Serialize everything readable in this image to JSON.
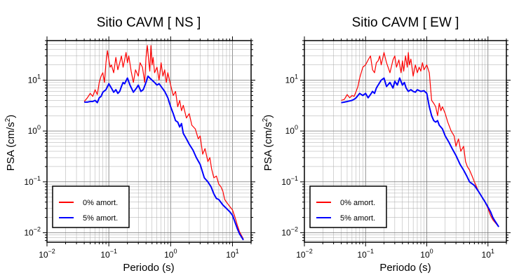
{
  "chart_data": [
    {
      "type": "line",
      "title": "Sitio CAVM [ NS ]",
      "xlabel": "Periodo (s)",
      "ylabel_main": "PSA (cm/s",
      "ylabel_sup": "2",
      "ylabel_tail": ")",
      "x_scale": "log",
      "y_scale": "log",
      "xlim": [
        0.01,
        20
      ],
      "ylim": [
        0.0065,
        60
      ],
      "x_ticks": [
        {
          "base": "10",
          "exp": "−2",
          "value": 0.01
        },
        {
          "base": "10",
          "exp": "−1",
          "value": 0.1
        },
        {
          "base": "10",
          "exp": "0",
          "value": 1
        },
        {
          "base": "10",
          "exp": "1",
          "value": 10
        }
      ],
      "y_ticks": [
        {
          "base": "10",
          "exp": "−2",
          "value": 0.01
        },
        {
          "base": "10",
          "exp": "−1",
          "value": 0.1
        },
        {
          "base": "10",
          "exp": "0",
          "value": 1
        },
        {
          "base": "10",
          "exp": "1",
          "value": 10
        }
      ],
      "grid": true,
      "legend": {
        "placement": "bottom-left",
        "entries": [
          "0% amort.",
          "5% amort."
        ]
      },
      "series": [
        {
          "name": "0% amort.",
          "color": "#ff0000",
          "x": [
            0.04,
            0.045,
            0.05,
            0.055,
            0.06,
            0.065,
            0.07,
            0.075,
            0.08,
            0.085,
            0.09,
            0.095,
            0.1,
            0.105,
            0.11,
            0.12,
            0.13,
            0.14,
            0.15,
            0.16,
            0.17,
            0.18,
            0.19,
            0.2,
            0.21,
            0.23,
            0.25,
            0.27,
            0.3,
            0.32,
            0.35,
            0.38,
            0.4,
            0.42,
            0.44,
            0.46,
            0.48,
            0.5,
            0.52,
            0.55,
            0.6,
            0.65,
            0.7,
            0.75,
            0.8,
            0.85,
            0.9,
            1.0,
            1.1,
            1.2,
            1.3,
            1.4,
            1.5,
            1.6,
            1.8,
            2.0,
            2.2,
            2.5,
            2.8,
            3.0,
            3.3,
            3.6,
            4.0,
            4.3,
            4.6,
            5.0,
            5.5,
            6.0,
            6.5,
            7.0,
            7.5,
            8.0,
            9.0,
            10,
            11,
            12,
            13,
            15
          ],
          "y": [
            3.8,
            4.5,
            5.5,
            4.8,
            6.5,
            5.2,
            9.0,
            12,
            14,
            9.0,
            22,
            38,
            25,
            18,
            20,
            14,
            28,
            16,
            22,
            30,
            18,
            25,
            35,
            22,
            30,
            15,
            9.0,
            16,
            12,
            22,
            18,
            9.0,
            28,
            48,
            25,
            15,
            48,
            20,
            28,
            14,
            18,
            10,
            22,
            12,
            16,
            9.0,
            14,
            8.0,
            5.0,
            6.0,
            3.0,
            4.0,
            2.5,
            3.2,
            1.8,
            2.2,
            1.3,
            1.1,
            0.7,
            0.8,
            0.35,
            0.45,
            0.25,
            0.3,
            0.18,
            0.12,
            0.13,
            0.09,
            0.08,
            0.065,
            0.045,
            0.04,
            0.033,
            0.028,
            0.02,
            0.014,
            0.0105,
            0.0075
          ]
        },
        {
          "name": "5% amort.",
          "color": "#0000ff",
          "x": [
            0.04,
            0.045,
            0.05,
            0.055,
            0.06,
            0.065,
            0.07,
            0.075,
            0.08,
            0.09,
            0.1,
            0.11,
            0.12,
            0.13,
            0.14,
            0.15,
            0.16,
            0.17,
            0.18,
            0.2,
            0.22,
            0.25,
            0.28,
            0.3,
            0.33,
            0.36,
            0.4,
            0.43,
            0.46,
            0.5,
            0.55,
            0.6,
            0.65,
            0.7,
            0.8,
            0.9,
            1.0,
            1.1,
            1.2,
            1.3,
            1.4,
            1.5,
            1.6,
            1.8,
            2.0,
            2.3,
            2.6,
            3.0,
            3.5,
            4.0,
            4.5,
            5.0,
            5.5,
            6.0,
            7.0,
            8.0,
            9.0,
            10,
            11,
            12,
            13,
            15
          ],
          "y": [
            3.7,
            3.7,
            3.8,
            3.8,
            4.0,
            3.6,
            4.5,
            4.8,
            5.8,
            6.5,
            8.5,
            7.0,
            5.8,
            6.5,
            5.5,
            6.0,
            7.5,
            9.0,
            8.5,
            11,
            8.0,
            5.8,
            7.0,
            8.0,
            6.0,
            6.5,
            9.0,
            12,
            11,
            10,
            9.0,
            8.0,
            8.5,
            7.5,
            6.0,
            4.5,
            3.0,
            2.2,
            1.6,
            1.5,
            1.2,
            1.4,
            0.9,
            0.7,
            0.55,
            0.42,
            0.3,
            0.22,
            0.12,
            0.1,
            0.08,
            0.058,
            0.047,
            0.045,
            0.035,
            0.03,
            0.026,
            0.022,
            0.016,
            0.012,
            0.0095,
            0.0072
          ]
        }
      ]
    },
    {
      "type": "line",
      "title": "Sitio CAVM [ EW ]",
      "xlabel": "Periodo (s)",
      "ylabel_main": "PSA (cm/s",
      "ylabel_sup": "2",
      "ylabel_tail": ")",
      "x_scale": "log",
      "y_scale": "log",
      "xlim": [
        0.01,
        20
      ],
      "ylim": [
        0.0065,
        60
      ],
      "x_ticks": [
        {
          "base": "10",
          "exp": "−2",
          "value": 0.01
        },
        {
          "base": "10",
          "exp": "−1",
          "value": 0.1
        },
        {
          "base": "10",
          "exp": "0",
          "value": 1
        },
        {
          "base": "10",
          "exp": "1",
          "value": 10
        }
      ],
      "y_ticks": [
        {
          "base": "10",
          "exp": "−2",
          "value": 0.01
        },
        {
          "base": "10",
          "exp": "−1",
          "value": 0.1
        },
        {
          "base": "10",
          "exp": "0",
          "value": 1
        },
        {
          "base": "10",
          "exp": "1",
          "value": 10
        }
      ],
      "grid": true,
      "legend": {
        "placement": "bottom-left",
        "entries": [
          "0% amort.",
          "5% amort."
        ]
      },
      "series": [
        {
          "name": "0% amort.",
          "color": "#ff0000",
          "x": [
            0.04,
            0.045,
            0.05,
            0.055,
            0.06,
            0.065,
            0.07,
            0.075,
            0.08,
            0.09,
            0.1,
            0.11,
            0.12,
            0.13,
            0.14,
            0.15,
            0.16,
            0.17,
            0.18,
            0.2,
            0.22,
            0.25,
            0.28,
            0.3,
            0.32,
            0.35,
            0.38,
            0.4,
            0.42,
            0.45,
            0.48,
            0.5,
            0.52,
            0.55,
            0.6,
            0.65,
            0.7,
            0.75,
            0.8,
            0.85,
            0.9,
            1.0,
            1.1,
            1.2,
            1.3,
            1.4,
            1.5,
            1.6,
            1.7,
            1.8,
            2.0,
            2.2,
            2.5,
            2.8,
            3.0,
            3.3,
            3.6,
            4.0,
            4.3,
            4.6,
            5.0,
            5.5,
            6.0,
            7.0,
            8.0,
            9.0,
            10,
            11,
            12,
            13,
            15
          ],
          "y": [
            4.0,
            4.2,
            5.2,
            4.5,
            5.0,
            4.8,
            6.0,
            7.5,
            11,
            18,
            20,
            25,
            30,
            16,
            14,
            22,
            24,
            30,
            20,
            35,
            22,
            14,
            25,
            30,
            18,
            25,
            14,
            24,
            15,
            30,
            18,
            35,
            20,
            26,
            12,
            20,
            14,
            18,
            15,
            22,
            16,
            20,
            14,
            4.0,
            3.5,
            3.0,
            2.0,
            3.5,
            2.5,
            3.0,
            2.2,
            1.5,
            1.0,
            0.8,
            0.5,
            0.7,
            0.4,
            0.5,
            0.25,
            0.2,
            0.17,
            0.13,
            0.1,
            0.065,
            0.05,
            0.04,
            0.03,
            0.022,
            0.018,
            0.016,
            0.013
          ]
        },
        {
          "name": "5% amort.",
          "color": "#0000ff",
          "x": [
            0.04,
            0.045,
            0.05,
            0.055,
            0.06,
            0.065,
            0.07,
            0.08,
            0.09,
            0.1,
            0.11,
            0.12,
            0.13,
            0.14,
            0.15,
            0.16,
            0.18,
            0.2,
            0.22,
            0.25,
            0.28,
            0.3,
            0.33,
            0.36,
            0.4,
            0.43,
            0.46,
            0.5,
            0.55,
            0.6,
            0.65,
            0.7,
            0.8,
            0.9,
            1.0,
            1.1,
            1.2,
            1.3,
            1.4,
            1.5,
            1.6,
            1.8,
            2.0,
            2.3,
            2.6,
            3.0,
            3.5,
            4.0,
            4.5,
            5.0,
            6.0,
            7.0,
            8.0,
            9.0,
            10,
            11,
            12,
            13,
            15
          ],
          "y": [
            3.6,
            3.7,
            3.8,
            3.9,
            4.0,
            4.2,
            4.5,
            5.5,
            5.0,
            5.5,
            4.5,
            5.2,
            6.0,
            5.5,
            7.0,
            8.0,
            10,
            11,
            7.5,
            9.0,
            7.0,
            9.5,
            8.0,
            11,
            8.0,
            9.0,
            7.0,
            6.0,
            6.5,
            6.0,
            5.8,
            6.5,
            6.0,
            6.2,
            5.5,
            3.0,
            2.0,
            1.6,
            1.5,
            1.6,
            1.3,
            1.1,
            0.8,
            0.6,
            0.45,
            0.33,
            0.22,
            0.17,
            0.13,
            0.1,
            0.085,
            0.065,
            0.05,
            0.04,
            0.032,
            0.026,
            0.02,
            0.017,
            0.013
          ]
        }
      ]
    }
  ]
}
